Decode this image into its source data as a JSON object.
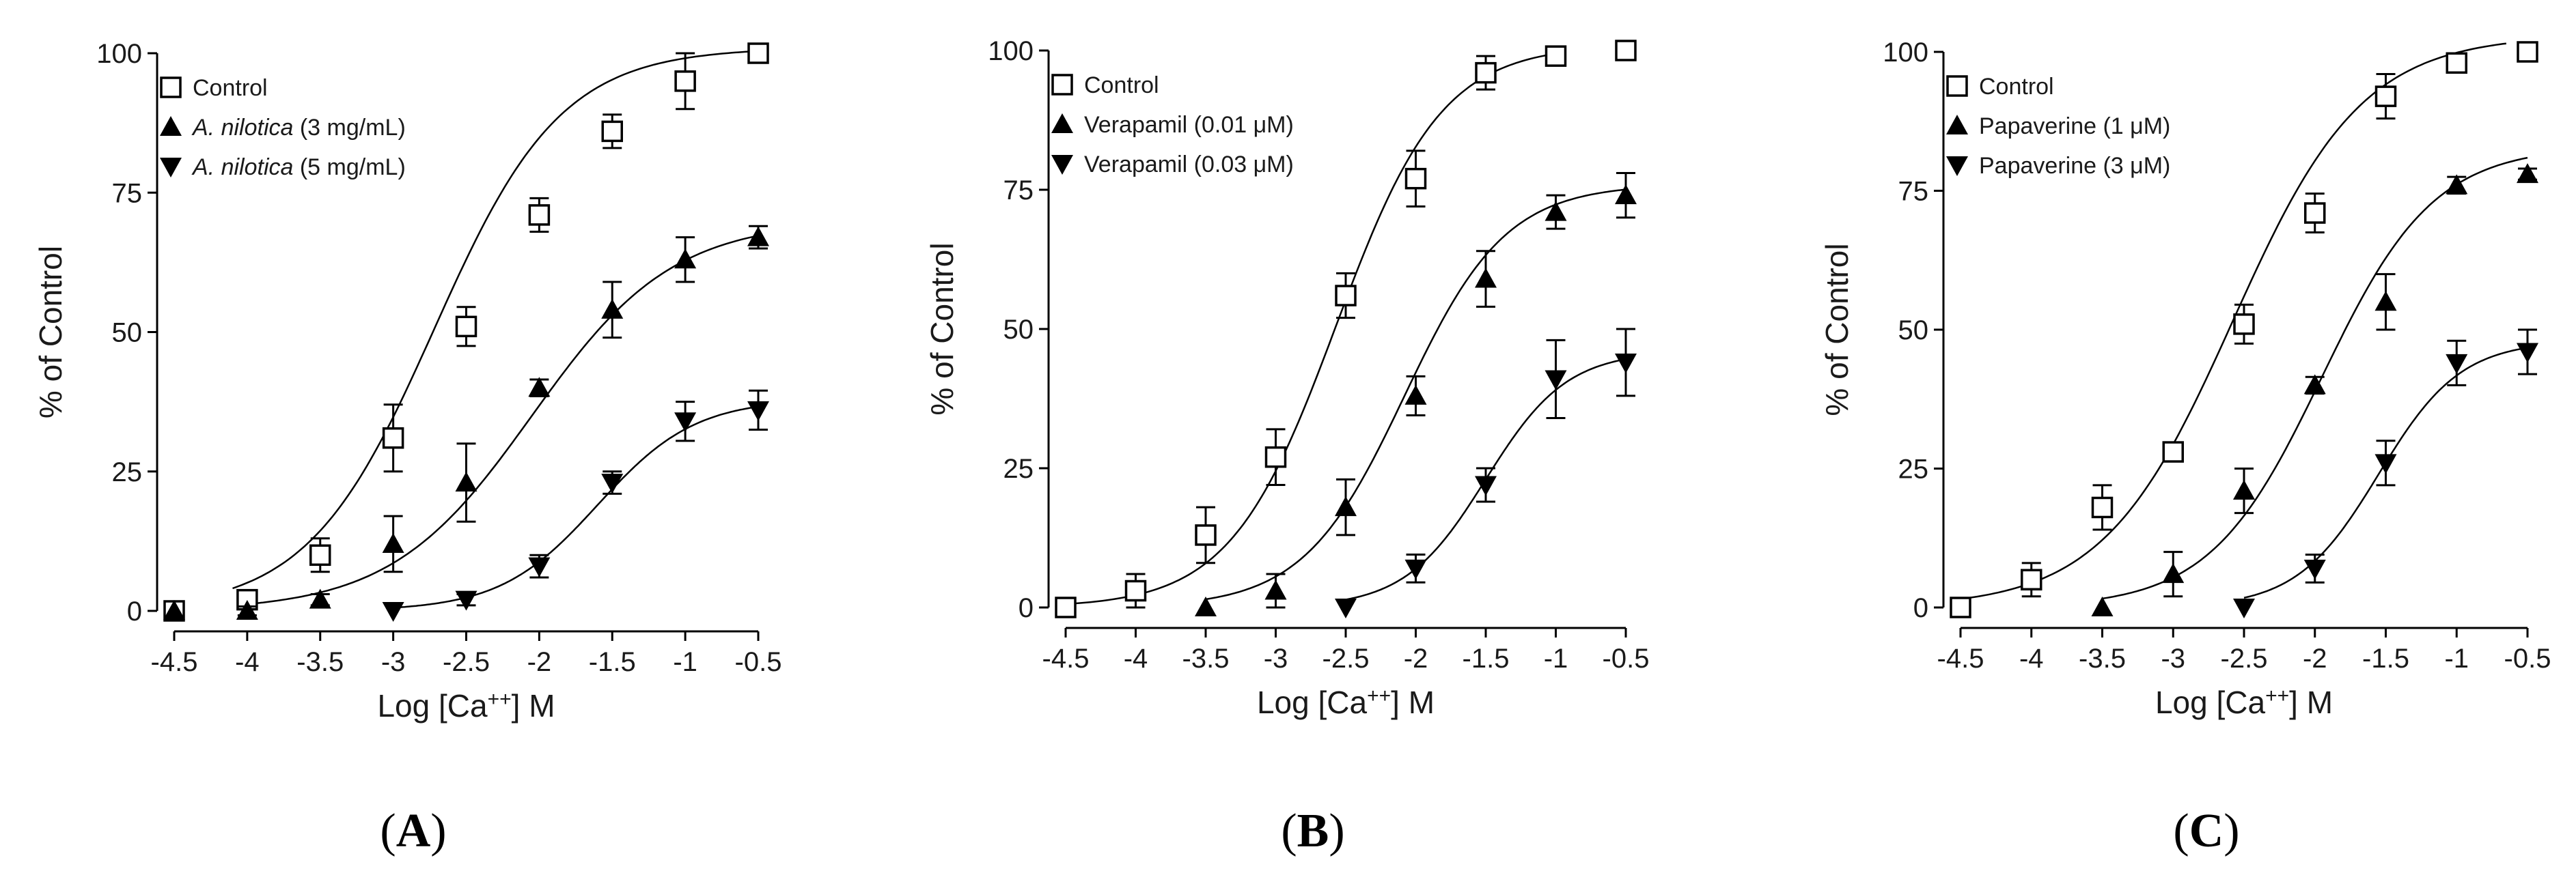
{
  "figure_labels": [
    {
      "open": "(",
      "letter": "A",
      "close": ")"
    },
    {
      "open": "(",
      "letter": "B",
      "close": ")"
    },
    {
      "open": "(",
      "letter": "C",
      "close": ")"
    }
  ],
  "chart_data": [
    {
      "type": "scatter",
      "panel": "A",
      "xlabel": {
        "prefix": "Log [Ca",
        "sup": "++",
        "suffix": "] M"
      },
      "ylabel": "% of Control",
      "xlim": [
        -4.5,
        -0.5
      ],
      "ylim": [
        0,
        100
      ],
      "xticks": [
        "-4.5",
        "-4",
        "-3.5",
        "-3",
        "-2.5",
        "-2",
        "-1.5",
        "-1",
        "-0.5"
      ],
      "yticks": [
        "0",
        "25",
        "50",
        "75",
        "100"
      ],
      "series": [
        {
          "name": "Control",
          "label_parts": [
            {
              "t": "Control",
              "i": false
            }
          ],
          "marker": "open-square",
          "x": [
            -4.5,
            -4,
            -3.5,
            -3,
            -2.5,
            -2,
            -1.5,
            -1,
            -0.5
          ],
          "y": [
            0,
            2,
            10,
            31,
            51,
            71,
            86,
            95,
            100
          ],
          "err": [
            0,
            1.5,
            3,
            6,
            3.5,
            3,
            3,
            5,
            1
          ],
          "fit": {
            "bottom": 0,
            "top": 101,
            "ec50": -2.72,
            "hill": 1.0,
            "from": -4.1,
            "to": -0.5
          }
        },
        {
          "name": "A. nilotica (3 mg/mL)",
          "label_parts": [
            {
              "t": "A. nilotica",
              "i": true
            },
            {
              "t": " (3 mg/mL)",
              "i": false
            }
          ],
          "marker": "filled-triangle-up",
          "x": [
            -4.5,
            -4,
            -3.5,
            -3,
            -2.5,
            -2,
            -1.5,
            -1,
            -0.5
          ],
          "y": [
            0,
            0,
            2,
            12,
            23,
            40,
            54,
            63,
            67
          ],
          "err": [
            0,
            0.8,
            1,
            5,
            7,
            1.5,
            5,
            4,
            2
          ],
          "fit": {
            "bottom": 0,
            "top": 70,
            "ec50": -2.05,
            "hill": 0.9,
            "from": -4.0,
            "to": -0.5
          }
        },
        {
          "name": "A. nilotica (5 mg/mL)",
          "label_parts": [
            {
              "t": "A. nilotica",
              "i": true
            },
            {
              "t": " (5 mg/mL)",
              "i": false
            }
          ],
          "marker": "filled-triangle-down",
          "x": [
            -3,
            -2.5,
            -2,
            -1.5,
            -1,
            -0.5
          ],
          "y": [
            0,
            2,
            8,
            23,
            34,
            36
          ],
          "err": [
            0,
            1,
            2,
            2,
            3.5,
            3.5
          ],
          "fit": {
            "bottom": 0,
            "top": 38,
            "ec50": -1.6,
            "hill": 1.3,
            "from": -3.0,
            "to": -0.5
          }
        }
      ]
    },
    {
      "type": "scatter",
      "panel": "B",
      "xlabel": {
        "prefix": "Log [Ca",
        "sup": "++",
        "suffix": "] M"
      },
      "ylabel": "% of Control",
      "xlim": [
        -4.5,
        -0.5
      ],
      "ylim": [
        0,
        100
      ],
      "xticks": [
        "-4.5",
        "-4",
        "-3.5",
        "-3",
        "-2.5",
        "-2",
        "-1.5",
        "-1",
        "-0.5"
      ],
      "yticks": [
        "0",
        "25",
        "50",
        "75",
        "100"
      ],
      "series": [
        {
          "name": "Control",
          "label_parts": [
            {
              "t": "Control",
              "i": false
            }
          ],
          "marker": "open-square",
          "x": [
            -4.5,
            -4,
            -3.5,
            -3,
            -2.5,
            -2,
            -1.5,
            -1,
            -0.5
          ],
          "y": [
            0,
            3,
            13,
            27,
            56,
            77,
            96,
            99,
            100
          ],
          "err": [
            0,
            3,
            5,
            5,
            4,
            5,
            3,
            1,
            0
          ],
          "fit": {
            "bottom": 0,
            "top": 101,
            "ec50": -2.57,
            "hill": 1.15,
            "from": -4.5,
            "to": -1.0
          }
        },
        {
          "name": "Verapamil (0.01 μM)",
          "label_parts": [
            {
              "t": "Verapamil (0.01 μM)",
              "i": false
            }
          ],
          "marker": "filled-triangle-up",
          "x": [
            -3.5,
            -3,
            -2.5,
            -2,
            -1.5,
            -1,
            -0.5
          ],
          "y": [
            0,
            3,
            18,
            38,
            59,
            71,
            74
          ],
          "err": [
            0,
            3,
            5,
            3.5,
            5,
            3,
            4
          ],
          "fit": {
            "bottom": 0,
            "top": 76,
            "ec50": -2.08,
            "hill": 1.2,
            "from": -3.5,
            "to": -0.5
          }
        },
        {
          "name": "Verapamil (0.03 μM)",
          "label_parts": [
            {
              "t": "Verapamil (0.03 μM)",
              "i": false
            }
          ],
          "marker": "filled-triangle-down",
          "x": [
            -2.5,
            -2,
            -1.5,
            -1,
            -0.5
          ],
          "y": [
            0,
            7,
            22,
            41,
            44
          ],
          "err": [
            0,
            2.5,
            3,
            7,
            6
          ],
          "fit": {
            "bottom": 0,
            "top": 46,
            "ec50": -1.5,
            "hill": 1.5,
            "from": -2.5,
            "to": -0.5
          }
        }
      ]
    },
    {
      "type": "scatter",
      "panel": "C",
      "xlabel": {
        "prefix": "Log [Ca",
        "sup": "++",
        "suffix": "] M"
      },
      "ylabel": "% of Control",
      "xlim": [
        -4.5,
        -0.5
      ],
      "ylim": [
        0,
        100
      ],
      "xticks": [
        "-4.5",
        "-4",
        "-3.5",
        "-3",
        "-2.5",
        "-2",
        "-1.5",
        "-1",
        "-0.5"
      ],
      "yticks": [
        "0",
        "25",
        "50",
        "75",
        "100"
      ],
      "series": [
        {
          "name": "Control",
          "label_parts": [
            {
              "t": "Control",
              "i": false
            }
          ],
          "marker": "open-square",
          "x": [
            -4.5,
            -4,
            -3.5,
            -3,
            -2.5,
            -2,
            -1.5,
            -1,
            -0.5
          ],
          "y": [
            0,
            5,
            18,
            28,
            51,
            71,
            92,
            98,
            100
          ],
          "err": [
            0,
            3,
            4,
            1.5,
            3.5,
            3.5,
            4,
            1,
            0
          ],
          "fit": {
            "bottom": 0,
            "top": 103,
            "ec50": -2.58,
            "hill": 0.95,
            "from": -4.5,
            "to": -0.65
          }
        },
        {
          "name": "Papaverine (1 μM)",
          "label_parts": [
            {
              "t": "Papaverine (1 μM)",
              "i": false
            }
          ],
          "marker": "filled-triangle-up",
          "x": [
            -3.5,
            -3,
            -2.5,
            -2,
            -1.5,
            -1,
            -0.5
          ],
          "y": [
            0,
            6,
            21,
            40,
            55,
            76,
            78
          ],
          "err": [
            0,
            4,
            4,
            1.5,
            5,
            1.5,
            1
          ],
          "fit": {
            "bottom": 0,
            "top": 83,
            "ec50": -1.95,
            "hill": 1.1,
            "from": -3.5,
            "to": -0.5
          }
        },
        {
          "name": "Papaverine (3 μM)",
          "label_parts": [
            {
              "t": "Papaverine (3 μM)",
              "i": false
            }
          ],
          "marker": "filled-triangle-down",
          "x": [
            -2.5,
            -2,
            -1.5,
            -1,
            -0.5
          ],
          "y": [
            0,
            7,
            26,
            44,
            46
          ],
          "err": [
            0,
            2.5,
            4,
            4,
            4
          ],
          "fit": {
            "bottom": 0,
            "top": 48,
            "ec50": -1.55,
            "hill": 1.5,
            "from": -2.5,
            "to": -0.5
          }
        }
      ]
    }
  ]
}
